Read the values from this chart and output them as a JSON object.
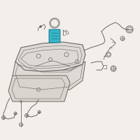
{
  "bg_color": "#f2eeea",
  "line_color": "#6a6560",
  "line_color2": "#8a847e",
  "highlight_color": "#3ab5c8",
  "highlight_edge": "#1a8a9a",
  "fig_size": [
    2.0,
    2.0
  ],
  "dpi": 100,
  "tank_fill": "#ddd9d4",
  "shield_fill": "#d8d4ce",
  "small_fill": "#c8c4be"
}
